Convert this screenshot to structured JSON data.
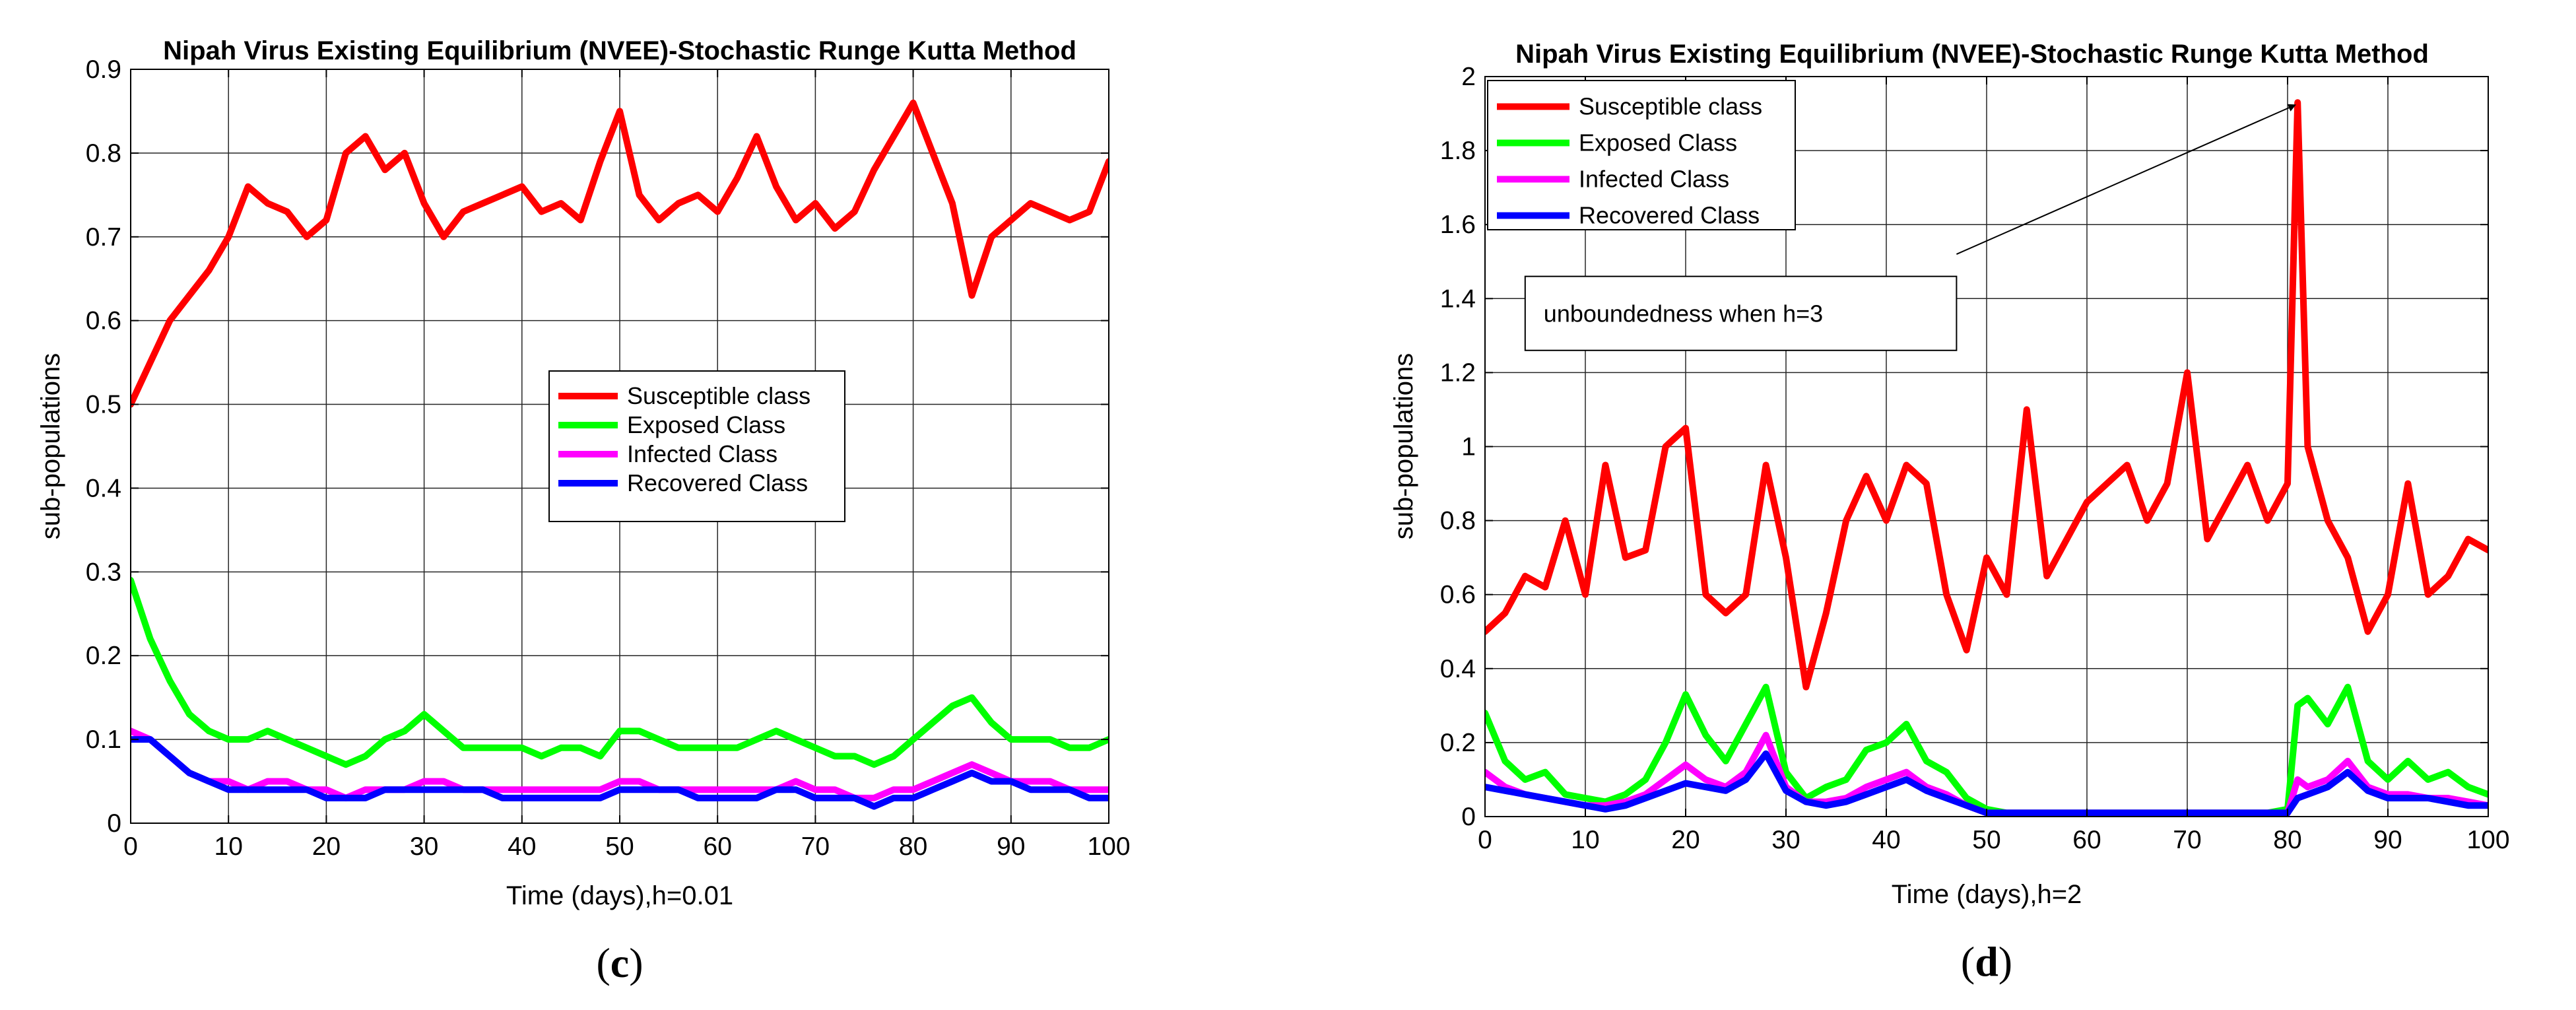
{
  "colors": {
    "susceptible": "#ff0000",
    "exposed": "#00ff00",
    "infected": "#ff00ff",
    "recovered": "#0000ff"
  },
  "chart_data": [
    {
      "type": "line",
      "title": "Nipah Virus Existing Equilibrium (NVEE)-Stochastic Runge Kutta Method",
      "xlabel": "Time (days),h=0.01",
      "ylabel": "sub-populations",
      "caption_letter": "c",
      "xlim": [
        0,
        100
      ],
      "ylim": [
        0,
        0.9
      ],
      "xticks": [
        0,
        10,
        20,
        30,
        40,
        50,
        60,
        70,
        80,
        90,
        100
      ],
      "xtick_labels": [
        "0",
        "10",
        "20",
        "30",
        "40",
        "50",
        "60",
        "70",
        "80",
        "90",
        "100"
      ],
      "yticks": [
        0,
        0.1,
        0.2,
        0.3,
        0.4,
        0.5,
        0.6,
        0.7,
        0.8,
        0.9
      ],
      "ytick_labels": [
        "0",
        "0.1",
        "0.2",
        "0.3",
        "0.4",
        "0.5",
        "0.6",
        "0.7",
        "0.8",
        "0.9"
      ],
      "grid": true,
      "legend_position": "center-right",
      "x": [
        0,
        2,
        4,
        6,
        8,
        10,
        12,
        14,
        16,
        18,
        20,
        22,
        24,
        26,
        28,
        30,
        32,
        34,
        36,
        38,
        40,
        42,
        44,
        46,
        48,
        50,
        52,
        54,
        56,
        58,
        60,
        62,
        64,
        66,
        68,
        70,
        72,
        74,
        76,
        78,
        80,
        82,
        84,
        86,
        88,
        90,
        92,
        94,
        96,
        98,
        100
      ],
      "series": [
        {
          "name": "Susceptible class",
          "color_key": "susceptible",
          "values": [
            0.5,
            0.55,
            0.6,
            0.63,
            0.66,
            0.7,
            0.76,
            0.74,
            0.73,
            0.7,
            0.72,
            0.8,
            0.82,
            0.78,
            0.8,
            0.74,
            0.7,
            0.73,
            0.74,
            0.75,
            0.76,
            0.73,
            0.74,
            0.72,
            0.79,
            0.85,
            0.75,
            0.72,
            0.74,
            0.75,
            0.73,
            0.77,
            0.82,
            0.76,
            0.72,
            0.74,
            0.71,
            0.73,
            0.78,
            0.82,
            0.86,
            0.8,
            0.74,
            0.63,
            0.7,
            0.72,
            0.74,
            0.73,
            0.72,
            0.73,
            0.79
          ]
        },
        {
          "name": "Exposed Class",
          "color_key": "exposed",
          "values": [
            0.29,
            0.22,
            0.17,
            0.13,
            0.11,
            0.1,
            0.1,
            0.11,
            0.1,
            0.09,
            0.08,
            0.07,
            0.08,
            0.1,
            0.11,
            0.13,
            0.11,
            0.09,
            0.09,
            0.09,
            0.09,
            0.08,
            0.09,
            0.09,
            0.08,
            0.11,
            0.11,
            0.1,
            0.09,
            0.09,
            0.09,
            0.09,
            0.1,
            0.11,
            0.1,
            0.09,
            0.08,
            0.08,
            0.07,
            0.08,
            0.1,
            0.12,
            0.14,
            0.15,
            0.12,
            0.1,
            0.1,
            0.1,
            0.09,
            0.09,
            0.1
          ]
        },
        {
          "name": "Infected Class",
          "color_key": "infected",
          "values": [
            0.11,
            0.1,
            0.08,
            0.06,
            0.05,
            0.05,
            0.04,
            0.05,
            0.05,
            0.04,
            0.04,
            0.03,
            0.04,
            0.04,
            0.04,
            0.05,
            0.05,
            0.04,
            0.04,
            0.04,
            0.04,
            0.04,
            0.04,
            0.04,
            0.04,
            0.05,
            0.05,
            0.04,
            0.04,
            0.04,
            0.04,
            0.04,
            0.04,
            0.04,
            0.05,
            0.04,
            0.04,
            0.03,
            0.03,
            0.04,
            0.04,
            0.05,
            0.06,
            0.07,
            0.06,
            0.05,
            0.05,
            0.05,
            0.04,
            0.04,
            0.04
          ]
        },
        {
          "name": "Recovered Class",
          "color_key": "recovered",
          "values": [
            0.1,
            0.1,
            0.08,
            0.06,
            0.05,
            0.04,
            0.04,
            0.04,
            0.04,
            0.04,
            0.03,
            0.03,
            0.03,
            0.04,
            0.04,
            0.04,
            0.04,
            0.04,
            0.04,
            0.03,
            0.03,
            0.03,
            0.03,
            0.03,
            0.03,
            0.04,
            0.04,
            0.04,
            0.04,
            0.03,
            0.03,
            0.03,
            0.03,
            0.04,
            0.04,
            0.03,
            0.03,
            0.03,
            0.02,
            0.03,
            0.03,
            0.04,
            0.05,
            0.06,
            0.05,
            0.05,
            0.04,
            0.04,
            0.04,
            0.03,
            0.03
          ]
        }
      ]
    },
    {
      "type": "line",
      "title": "Nipah Virus Existing Equilibrium (NVEE)-Stochastic Runge Kutta Method",
      "xlabel": "Time (days),h=2",
      "ylabel": "sub-populations",
      "caption_letter": "d",
      "xlim": [
        0,
        100
      ],
      "ylim": [
        0,
        2
      ],
      "xticks": [
        0,
        10,
        20,
        30,
        40,
        50,
        60,
        70,
        80,
        90,
        100
      ],
      "xtick_labels": [
        "0",
        "10",
        "20",
        "30",
        "40",
        "50",
        "60",
        "70",
        "80",
        "90",
        "100"
      ],
      "yticks": [
        0,
        0.2,
        0.4,
        0.6,
        0.8,
        1.0,
        1.2,
        1.4,
        1.6,
        1.8,
        2.0
      ],
      "ytick_labels": [
        "0",
        "0.2",
        "0.4",
        "0.6",
        "0.8",
        "1",
        "1.2",
        "1.4",
        "1.6",
        "1.8",
        "2"
      ],
      "grid": true,
      "legend_position": "top-left",
      "annotation": {
        "text": "unboundedness when h=3",
        "points_to_x": 81,
        "points_to_y": 1.93,
        "box_x_range": [
          4,
          47
        ],
        "box_y_range": [
          1.26,
          1.46
        ]
      },
      "x": [
        0,
        2,
        4,
        6,
        8,
        10,
        12,
        14,
        16,
        18,
        20,
        22,
        24,
        26,
        28,
        30,
        32,
        34,
        36,
        38,
        40,
        42,
        44,
        46,
        48,
        50,
        52,
        54,
        56,
        58,
        60,
        62,
        64,
        66,
        68,
        70,
        72,
        74,
        76,
        78,
        80,
        81,
        82,
        84,
        86,
        88,
        90,
        92,
        94,
        96,
        98,
        100
      ],
      "series": [
        {
          "name": "Susceptible class",
          "color_key": "susceptible",
          "values": [
            0.5,
            0.55,
            0.65,
            0.62,
            0.8,
            0.6,
            0.95,
            0.7,
            0.72,
            1.0,
            1.05,
            0.6,
            0.55,
            0.6,
            0.95,
            0.7,
            0.35,
            0.55,
            0.8,
            0.92,
            0.8,
            0.95,
            0.9,
            0.6,
            0.45,
            0.7,
            0.6,
            1.1,
            0.65,
            0.75,
            0.85,
            0.9,
            0.95,
            0.8,
            0.9,
            1.2,
            0.75,
            0.85,
            0.95,
            0.8,
            0.9,
            1.93,
            1.0,
            0.8,
            0.7,
            0.5,
            0.6,
            0.9,
            0.6,
            0.65,
            0.75,
            0.72
          ]
        },
        {
          "name": "Exposed Class",
          "color_key": "exposed",
          "values": [
            0.28,
            0.15,
            0.1,
            0.12,
            0.06,
            0.05,
            0.04,
            0.06,
            0.1,
            0.2,
            0.33,
            0.22,
            0.15,
            0.25,
            0.35,
            0.12,
            0.05,
            0.08,
            0.1,
            0.18,
            0.2,
            0.25,
            0.15,
            0.12,
            0.05,
            0.02,
            0.01,
            0.01,
            0.01,
            0.01,
            0.01,
            0.01,
            0.01,
            0.01,
            0.01,
            0.01,
            0.01,
            0.01,
            0.01,
            0.01,
            0.02,
            0.3,
            0.32,
            0.25,
            0.35,
            0.15,
            0.1,
            0.15,
            0.1,
            0.12,
            0.08,
            0.06
          ]
        },
        {
          "name": "Infected Class",
          "color_key": "infected",
          "values": [
            0.12,
            0.08,
            0.06,
            0.05,
            0.04,
            0.03,
            0.03,
            0.04,
            0.06,
            0.1,
            0.14,
            0.1,
            0.08,
            0.12,
            0.22,
            0.08,
            0.04,
            0.04,
            0.05,
            0.08,
            0.1,
            0.12,
            0.08,
            0.06,
            0.03,
            0.01,
            0.01,
            0.01,
            0.01,
            0.01,
            0.01,
            0.01,
            0.01,
            0.01,
            0.01,
            0.01,
            0.01,
            0.01,
            0.01,
            0.01,
            0.01,
            0.1,
            0.08,
            0.1,
            0.15,
            0.08,
            0.06,
            0.06,
            0.05,
            0.05,
            0.04,
            0.03
          ]
        },
        {
          "name": "Recovered Class",
          "color_key": "recovered",
          "values": [
            0.08,
            0.07,
            0.06,
            0.05,
            0.04,
            0.03,
            0.02,
            0.03,
            0.05,
            0.07,
            0.09,
            0.08,
            0.07,
            0.1,
            0.17,
            0.07,
            0.04,
            0.03,
            0.04,
            0.06,
            0.08,
            0.1,
            0.07,
            0.05,
            0.03,
            0.01,
            0.01,
            0.01,
            0.01,
            0.01,
            0.01,
            0.01,
            0.01,
            0.01,
            0.01,
            0.01,
            0.01,
            0.01,
            0.01,
            0.01,
            0.01,
            0.05,
            0.06,
            0.08,
            0.12,
            0.07,
            0.05,
            0.05,
            0.05,
            0.04,
            0.03,
            0.03
          ]
        }
      ]
    }
  ]
}
